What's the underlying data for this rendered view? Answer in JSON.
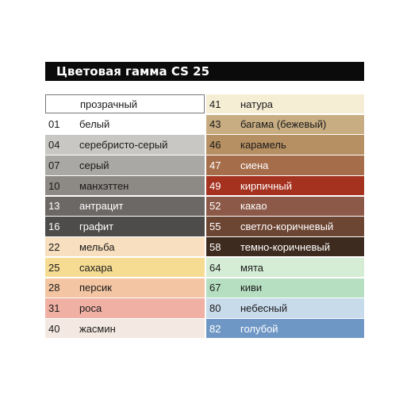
{
  "title": "Цветовая гамма CS 25",
  "left_column": [
    {
      "code": "",
      "name": "прозрачный",
      "color": "#ffffff",
      "outlined": true
    },
    {
      "code": "01",
      "name": "белый",
      "color": "#ffffff"
    },
    {
      "code": "04",
      "name": "серебристо-серый",
      "color": "#c9c7c4"
    },
    {
      "code": "07",
      "name": "серый",
      "color": "#aaa8a5"
    },
    {
      "code": "10",
      "name": "манхэттен",
      "color": "#8d8985"
    },
    {
      "code": "13",
      "name": "антрацит",
      "color": "#6b6866",
      "light": true
    },
    {
      "code": "16",
      "name": "графит",
      "color": "#4e4c4b",
      "light": true
    },
    {
      "code": "22",
      "name": "мельба",
      "color": "#f7dfbf"
    },
    {
      "code": "25",
      "name": "сахара",
      "color": "#f6dc93"
    },
    {
      "code": "28",
      "name": "персик",
      "color": "#f3c5a2"
    },
    {
      "code": "31",
      "name": "роса",
      "color": "#f0b0a4"
    },
    {
      "code": "40",
      "name": "жасмин",
      "color": "#f4e9e2"
    }
  ],
  "right_column": [
    {
      "code": "41",
      "name": "натура",
      "color": "#f6edd5"
    },
    {
      "code": "43",
      "name": "багама (бежевый)",
      "color": "#c8ad82"
    },
    {
      "code": "46",
      "name": "карамель",
      "color": "#b68f62"
    },
    {
      "code": "47",
      "name": "сиена",
      "color": "#a56d4a",
      "light": true
    },
    {
      "code": "49",
      "name": "кирпичный",
      "color": "#a5321f",
      "light": true
    },
    {
      "code": "52",
      "name": "какао",
      "color": "#8c5948",
      "light": true
    },
    {
      "code": "55",
      "name": "светло-коричневый",
      "color": "#6c4533",
      "light": true
    },
    {
      "code": "58",
      "name": "темно-коричневый",
      "color": "#3e2b1f",
      "light": true
    },
    {
      "code": "64",
      "name": "мята",
      "color": "#d5ecd5"
    },
    {
      "code": "67",
      "name": "киви",
      "color": "#b6dfc2"
    },
    {
      "code": "80",
      "name": "небесный",
      "color": "#c8dbeb"
    },
    {
      "code": "82",
      "name": "голубой",
      "color": "#6f97c5",
      "light": true
    }
  ]
}
